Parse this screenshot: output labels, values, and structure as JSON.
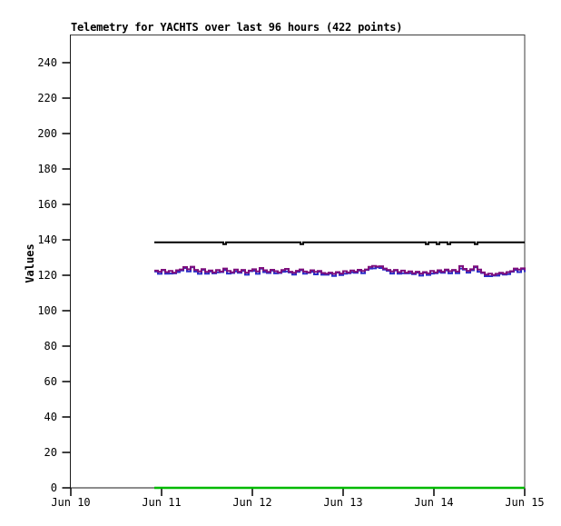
{
  "chart_data": {
    "type": "line",
    "title": "Telemetry for YACHTS over last 96 hours (422 points)",
    "ylabel": "Values",
    "xlabel": "",
    "ylim": [
      0,
      250
    ],
    "yticks": [
      0,
      20,
      40,
      60,
      80,
      100,
      120,
      140,
      160,
      180,
      200,
      220,
      240
    ],
    "xticks": {
      "positions_days": [
        0,
        1,
        2,
        3,
        4,
        5
      ],
      "labels": [
        "Jun 10",
        "Jun 11",
        "Jun 12",
        "Jun 13",
        "Jun 14",
        "Jun 15"
      ]
    },
    "x_domain_days": [
      0,
      5
    ],
    "grid": false,
    "legend": false,
    "colors": {
      "frame": "#3d3d3d",
      "axis": "#1a1a1a",
      "tick": "#000000",
      "text": "#000000",
      "background": "#ffffff"
    },
    "series": [
      {
        "name": "series-blue",
        "color": "#2a2ec8",
        "width": 2,
        "x_start": 0.92,
        "x_step": 0.04,
        "values": [
          122.1,
          120.8,
          122.8,
          120.9,
          121.0,
          121.1,
          121.8,
          122.7,
          124.1,
          122.2,
          124.5,
          122.1,
          120.8,
          123.1,
          120.9,
          122.1,
          121.1,
          121.7,
          121.8,
          122.9,
          121.0,
          121.3,
          122.2,
          121.4,
          122.5,
          120.3,
          122.3,
          122.5,
          120.8,
          123.7,
          121.8,
          121.3,
          122.6,
          121.1,
          121.3,
          122.0,
          122.2,
          121.6,
          120.4,
          121.9,
          122.8,
          120.9,
          121.4,
          121.9,
          120.5,
          122.0,
          120.3,
          120.3,
          121.0,
          119.6,
          121.5,
          120.1,
          120.9,
          121.2,
          121.7,
          121.4,
          122.6,
          121.2,
          123.0,
          123.8,
          123.9,
          124.5,
          124.1,
          123.2,
          122.5,
          121.0,
          122.7,
          120.9,
          121.2,
          121.1,
          121.2,
          120.6,
          121.5,
          119.8,
          121.5,
          120.2,
          121.0,
          121.2,
          121.8,
          121.4,
          122.7,
          121.1,
          122.7,
          121.2,
          123.8,
          123.2,
          121.5,
          122.8,
          124.5,
          122.0,
          121.3,
          119.5,
          119.5,
          119.8,
          119.8,
          120.8,
          120.4,
          120.6,
          122.0,
          122.9,
          121.8,
          123.5,
          121.8
        ]
      },
      {
        "name": "series-purple",
        "color": "#7d0f7d",
        "width": 2,
        "x_start": 0.92,
        "x_step": 0.04,
        "values": [
          122.6,
          122.0,
          123.1,
          121.8,
          122.4,
          121.5,
          122.8,
          123.3,
          124.6,
          123.4,
          124.8,
          123.0,
          122.2,
          123.5,
          121.9,
          122.7,
          121.6,
          122.9,
          122.1,
          123.8,
          122.4,
          121.7,
          123.2,
          122.0,
          123.0,
          121.5,
          122.6,
          123.4,
          122.2,
          124.1,
          122.8,
          121.9,
          123.1,
          122.3,
          121.6,
          122.9,
          123.6,
          122.0,
          121.4,
          122.5,
          123.3,
          122.1,
          121.7,
          122.8,
          121.9,
          122.4,
          121.3,
          120.9,
          121.5,
          120.8,
          121.8,
          121.0,
          122.3,
          121.6,
          122.7,
          122.0,
          123.1,
          122.4,
          123.3,
          124.7,
          125.3,
          124.9,
          125.1,
          123.8,
          123.0,
          122.2,
          123.0,
          121.8,
          122.6,
          121.5,
          122.2,
          121.2,
          122.0,
          121.0,
          121.8,
          121.1,
          122.4,
          121.6,
          122.8,
          122.0,
          123.2,
          122.3,
          123.0,
          122.1,
          125.2,
          123.6,
          122.5,
          123.4,
          125.0,
          123.2,
          121.6,
          120.4,
          120.9,
          120.2,
          120.8,
          121.4,
          120.9,
          121.8,
          122.3,
          123.8,
          123.2,
          123.9,
          122.8
        ]
      },
      {
        "name": "upper-bound-line",
        "color": "#000000",
        "width": 2,
        "points": [
          [
            0.92,
            138.6
          ],
          [
            1.66,
            138.6
          ],
          [
            1.68,
            137.6
          ],
          [
            1.71,
            138.6
          ],
          [
            2.51,
            138.6
          ],
          [
            2.53,
            137.6
          ],
          [
            2.56,
            138.6
          ],
          [
            3.89,
            138.6
          ],
          [
            3.91,
            137.6
          ],
          [
            3.94,
            138.6
          ],
          [
            4.01,
            138.6
          ],
          [
            4.03,
            137.6
          ],
          [
            4.06,
            138.6
          ],
          [
            4.13,
            138.6
          ],
          [
            4.15,
            137.6
          ],
          [
            4.18,
            138.6
          ],
          [
            4.43,
            138.6
          ],
          [
            4.45,
            137.6
          ],
          [
            4.48,
            138.6
          ],
          [
            5.0,
            138.6
          ]
        ]
      },
      {
        "name": "lower-bound-line",
        "color": "#00b900",
        "width": 2.6,
        "points": [
          [
            0.92,
            0
          ],
          [
            5.0,
            0
          ]
        ]
      }
    ]
  }
}
